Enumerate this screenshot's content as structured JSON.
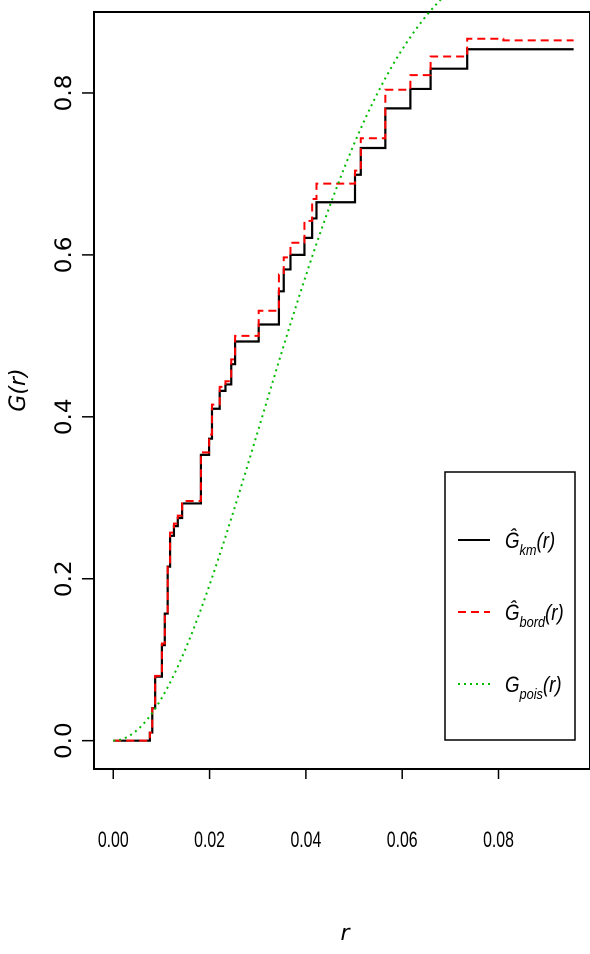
{
  "chart_data": {
    "type": "line",
    "xlabel": "r",
    "ylabel": "G(r)",
    "xlim": [
      -0.004,
      0.099
    ],
    "ylim": [
      -0.035,
      0.9
    ],
    "x_ticks": [
      0.0,
      0.02,
      0.04,
      0.06,
      0.08
    ],
    "x_tick_labels": [
      "0.00",
      "0.02",
      "0.04",
      "0.06",
      "0.08"
    ],
    "y_ticks": [
      0.0,
      0.2,
      0.4,
      0.6,
      0.8
    ],
    "y_tick_labels": [
      "0.0",
      "0.2",
      "0.4",
      "0.6",
      "0.8"
    ],
    "grid": false,
    "legend_position": "bottom-right",
    "legend": [
      {
        "name": "Ĝkm(r)",
        "base": "Ĝ",
        "sub": "km",
        "arg": "(r)",
        "color": "#000000",
        "dash": "solid"
      },
      {
        "name": "Ĝbord(r)",
        "base": "Ĝ",
        "sub": "bord",
        "arg": "(r)",
        "color": "#ff0000",
        "dash": "dashed"
      },
      {
        "name": "Gpois(r)",
        "base": "G",
        "sub": "pois",
        "arg": "(r)",
        "color": "#00bb00",
        "dash": "dotted"
      }
    ],
    "series": [
      {
        "name": "Ĝkm(r)",
        "color": "#000000",
        "dash": "solid",
        "step": true,
        "x": [
          0.0,
          0.0076,
          0.0081,
          0.0087,
          0.0092,
          0.0101,
          0.0107,
          0.0113,
          0.0118,
          0.0126,
          0.0134,
          0.0143,
          0.0152,
          0.0162,
          0.0182,
          0.019,
          0.0199,
          0.0205,
          0.0213,
          0.0221,
          0.0233,
          0.0245,
          0.0253,
          0.0302,
          0.0344,
          0.0354,
          0.0368,
          0.0388,
          0.0397,
          0.0405,
          0.0413,
          0.0422,
          0.0434,
          0.0502,
          0.0514,
          0.0565,
          0.0617,
          0.0659,
          0.0735,
          0.0956
        ],
        "y": [
          0.0,
          0.01,
          0.04,
          0.079,
          0.079,
          0.118,
          0.157,
          0.215,
          0.253,
          0.265,
          0.275,
          0.293,
          0.293,
          0.293,
          0.353,
          0.353,
          0.373,
          0.41,
          0.41,
          0.432,
          0.44,
          0.465,
          0.493,
          0.514,
          0.555,
          0.582,
          0.6,
          0.6,
          0.621,
          0.621,
          0.645,
          0.665,
          0.665,
          0.699,
          0.732,
          0.781,
          0.805,
          0.83,
          0.854,
          0.854
        ]
      },
      {
        "name": "Ĝbord(r)",
        "color": "#ff0000",
        "dash": "dashed",
        "step": true,
        "x": [
          0.0,
          0.0076,
          0.0081,
          0.0087,
          0.0092,
          0.0101,
          0.0107,
          0.0113,
          0.0118,
          0.0126,
          0.0134,
          0.0143,
          0.0152,
          0.0162,
          0.0182,
          0.019,
          0.0199,
          0.0205,
          0.0213,
          0.0221,
          0.0233,
          0.0245,
          0.0253,
          0.0302,
          0.0344,
          0.0354,
          0.0368,
          0.0388,
          0.0397,
          0.0405,
          0.0413,
          0.0422,
          0.0434,
          0.0502,
          0.0514,
          0.0565,
          0.0617,
          0.0659,
          0.0735,
          0.081,
          0.0956
        ],
        "y": [
          0.0,
          0.01,
          0.04,
          0.08,
          0.08,
          0.12,
          0.159,
          0.218,
          0.257,
          0.268,
          0.278,
          0.296,
          0.296,
          0.296,
          0.356,
          0.356,
          0.378,
          0.415,
          0.415,
          0.437,
          0.444,
          0.471,
          0.5,
          0.531,
          0.576,
          0.597,
          0.615,
          0.615,
          0.642,
          0.642,
          0.669,
          0.688,
          0.688,
          0.704,
          0.744,
          0.804,
          0.822,
          0.845,
          0.867,
          0.865,
          0.865
        ]
      },
      {
        "name": "Gpois(r)",
        "color": "#00bb00",
        "dash": "dotted",
        "step": false,
        "lambda": 170
      }
    ]
  }
}
